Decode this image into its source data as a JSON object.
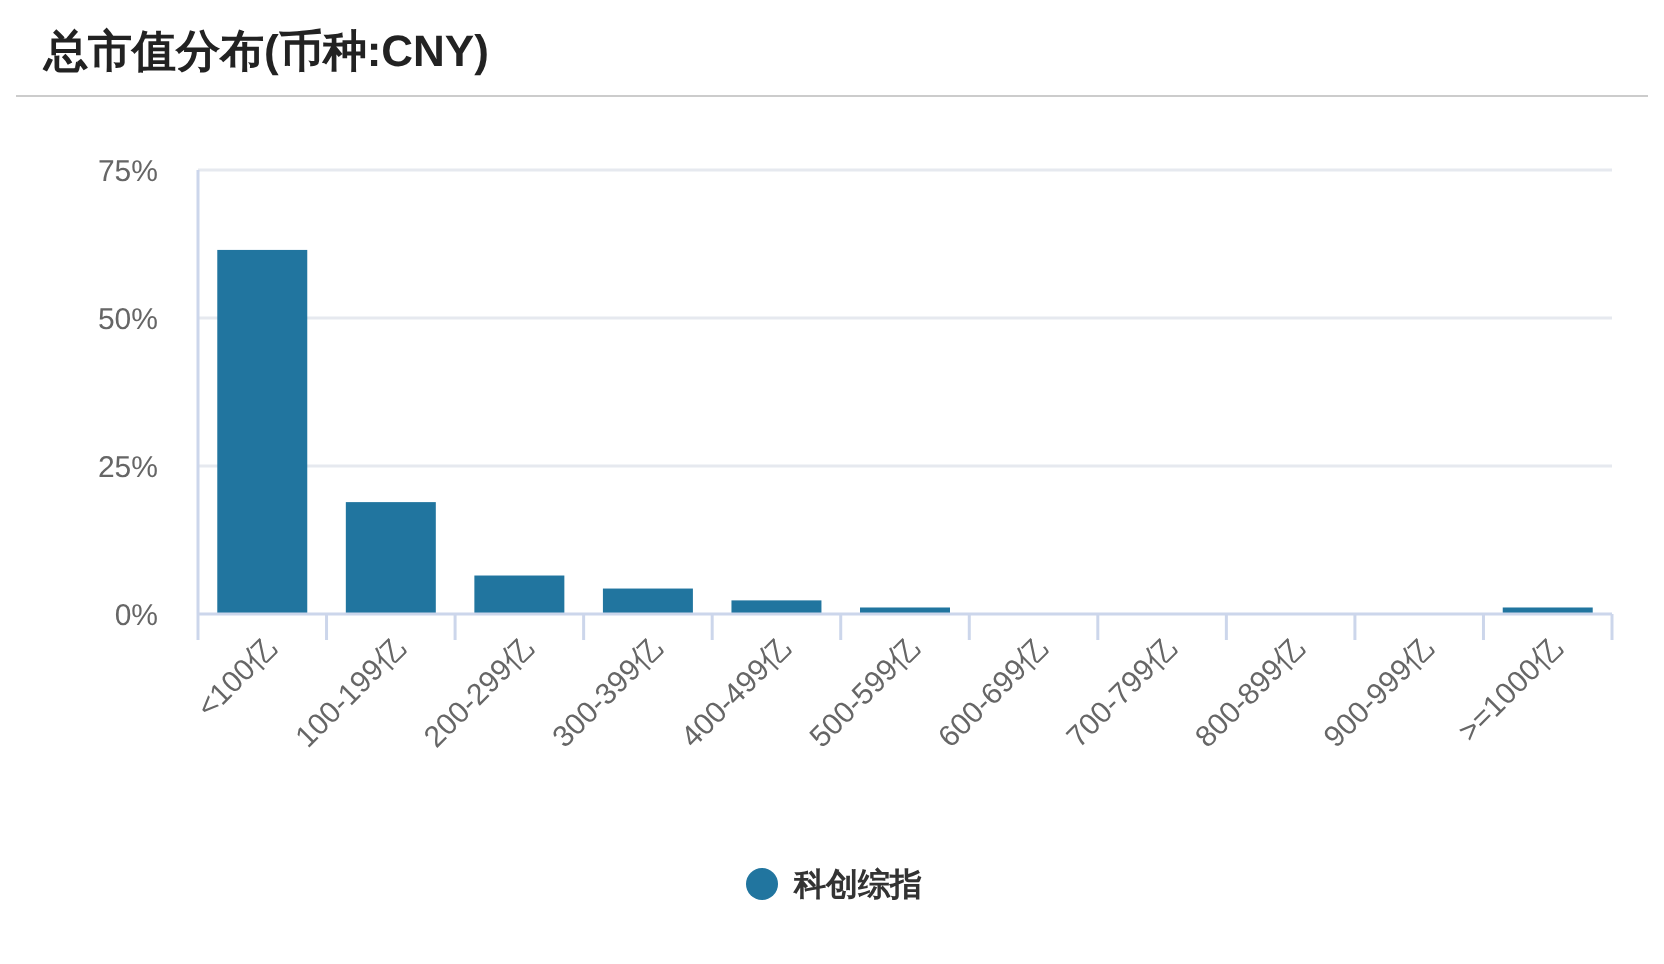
{
  "chart_data": {
    "type": "bar",
    "title": "总市值分布(币种:CNY)",
    "categories": [
      "<100亿",
      "100-199亿",
      "200-299亿",
      "300-399亿",
      "400-499亿",
      "500-599亿",
      "600-699亿",
      "700-799亿",
      "800-899亿",
      "900-999亿",
      ">=1000亿"
    ],
    "series": [
      {
        "name": "科创综指",
        "color": "#21759f",
        "values": [
          61.5,
          18.9,
          6.5,
          4.3,
          2.3,
          1.1,
          0,
          0,
          0,
          0,
          1.1
        ]
      }
    ],
    "ylim": [
      0,
      75
    ],
    "yticks": [
      {
        "value": 0,
        "label": "0%"
      },
      {
        "value": 25,
        "label": "25%"
      },
      {
        "value": 50,
        "label": "50%"
      },
      {
        "value": 75,
        "label": "75%"
      }
    ],
    "grid": "y",
    "legend": "bottom"
  }
}
